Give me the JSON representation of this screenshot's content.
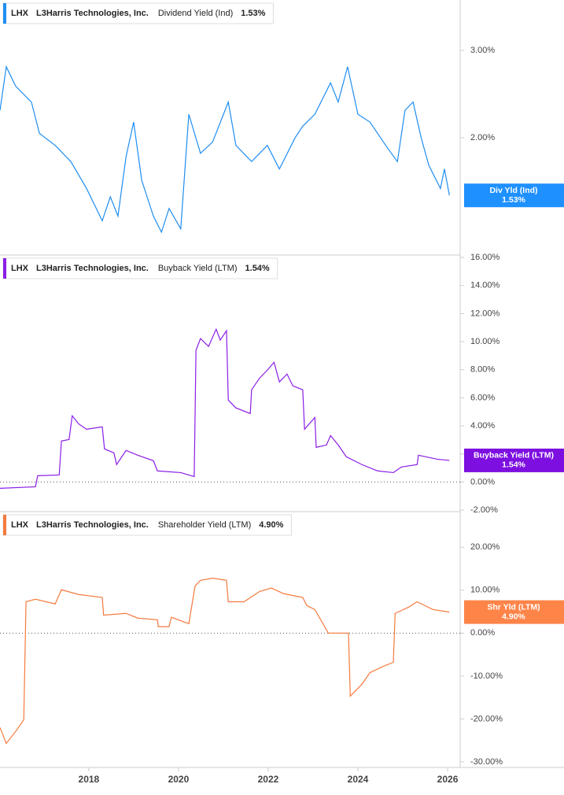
{
  "chart_data": [
    {
      "type": "line",
      "ticker": "LHX",
      "company": "L3Harris Technologies, Inc.",
      "log": true,
      "x": [
        2016.02,
        2016.16,
        2016.37,
        2016.72,
        2016.9,
        2017.25,
        2017.6,
        2017.95,
        2018.3,
        2018.48,
        2018.65,
        2018.83,
        2019.0,
        2019.18,
        2019.44,
        2019.62,
        2019.79,
        2020.05,
        2020.23,
        2020.49,
        2020.76,
        2021.11,
        2021.28,
        2021.63,
        2021.98,
        2022.25,
        2022.6,
        2022.77,
        2023.04,
        2023.39,
        2023.56,
        2023.77,
        2024.0,
        2024.27,
        2024.62,
        2024.88,
        2025.05,
        2025.23,
        2025.41,
        2025.58,
        2025.84,
        2025.93,
        2026.04
      ],
      "xlim": [
        2016.02,
        2026.28
      ],
      "ylim": [
        1.16,
        3.79
      ],
      "yticks": [
        {
          "value": 3,
          "label": "3.00%"
        },
        {
          "value": 2,
          "label": "2.00%"
        }
      ],
      "series": [
        {
          "name": "Dividend Yield (Ind)",
          "color": "#1f8ef1",
          "tag_color": "#1e90ff",
          "tag_label": "Div Yld (Ind)",
          "last_label": "1.53%",
          "values": [
            2.27,
            2.78,
            2.54,
            2.36,
            2.04,
            1.93,
            1.79,
            1.58,
            1.36,
            1.52,
            1.39,
            1.83,
            2.15,
            1.64,
            1.39,
            1.29,
            1.44,
            1.31,
            2.23,
            1.86,
            1.96,
            2.36,
            1.93,
            1.79,
            1.93,
            1.73,
            2.0,
            2.11,
            2.23,
            2.58,
            2.36,
            2.78,
            2.23,
            2.15,
            1.93,
            1.79,
            2.27,
            2.36,
            2.0,
            1.76,
            1.58,
            1.73,
            1.53
          ]
        }
      ]
    },
    {
      "type": "line",
      "ticker": "LHX",
      "company": "L3Harris Technologies, Inc.",
      "log": false,
      "zero_line": true,
      "x": [
        2016.02,
        2016.81,
        2016.86,
        2017.34,
        2017.39,
        2017.56,
        2017.63,
        2017.77,
        2017.95,
        2018.3,
        2018.35,
        2018.56,
        2018.62,
        2018.83,
        2019.09,
        2019.44,
        2019.53,
        2020.05,
        2020.35,
        2020.39,
        2020.49,
        2020.67,
        2020.84,
        2020.93,
        2021.07,
        2021.11,
        2021.28,
        2021.6,
        2021.63,
        2021.81,
        2021.98,
        2022.13,
        2022.25,
        2022.42,
        2022.55,
        2022.77,
        2022.81,
        2023.04,
        2023.07,
        2023.3,
        2023.39,
        2023.56,
        2023.74,
        2024.09,
        2024.44,
        2024.79,
        2024.97,
        2025.32,
        2025.35,
        2025.76,
        2026.04
      ],
      "xlim": [
        2016.02,
        2026.28
      ],
      "ylim": [
        -2.11,
        16.17
      ],
      "yticks": [
        {
          "value": 16,
          "label": "16.00%"
        },
        {
          "value": 14,
          "label": "14.00%"
        },
        {
          "value": 12,
          "label": "12.00%"
        },
        {
          "value": 10,
          "label": "10.00%"
        },
        {
          "value": 8,
          "label": "8.00%"
        },
        {
          "value": 6,
          "label": "6.00%"
        },
        {
          "value": 4,
          "label": "4.00%"
        },
        {
          "value": 2,
          "label": "2.00%"
        },
        {
          "value": 0,
          "label": "0.00%"
        },
        {
          "value": -2,
          "label": "-2.00%"
        }
      ],
      "series": [
        {
          "name": "Buyback Yield (LTM)",
          "color": "#8a1ee6",
          "tag_color": "#7d0fe0",
          "tag_label": "Buyback Yield (LTM)",
          "last_label": "1.54%",
          "values": [
            -0.45,
            -0.34,
            0.45,
            0.5,
            2.92,
            3.03,
            4.72,
            4.15,
            3.76,
            3.93,
            2.36,
            2.08,
            1.24,
            2.25,
            1.91,
            1.52,
            0.79,
            0.67,
            0.39,
            9.38,
            10.22,
            9.66,
            10.89,
            10.11,
            10.78,
            5.84,
            5.28,
            4.88,
            6.57,
            7.41,
            7.97,
            8.53,
            7.13,
            7.69,
            6.85,
            6.57,
            3.76,
            4.6,
            2.47,
            2.64,
            3.31,
            2.64,
            1.8,
            1.24,
            0.79,
            0.67,
            1.07,
            1.24,
            1.91,
            1.63,
            1.54
          ]
        }
      ]
    },
    {
      "type": "line",
      "ticker": "LHX",
      "company": "L3Harris Technologies, Inc.",
      "log": false,
      "zero_line": true,
      "x": [
        2016.02,
        2016.16,
        2016.37,
        2016.55,
        2016.6,
        2016.81,
        2017.25,
        2017.39,
        2017.77,
        2018.3,
        2018.33,
        2018.83,
        2019.09,
        2019.53,
        2019.55,
        2019.79,
        2019.84,
        2020.23,
        2020.37,
        2020.49,
        2020.76,
        2021.07,
        2021.11,
        2021.46,
        2021.81,
        2022.07,
        2022.34,
        2022.77,
        2022.86,
        2023.04,
        2023.34,
        2023.79,
        2023.83,
        2024.09,
        2024.27,
        2024.53,
        2024.79,
        2024.83,
        2025.14,
        2025.32,
        2025.67,
        2026.04
      ],
      "xlim": [
        2016.02,
        2026.28
      ],
      "xticks": [
        2018,
        2020,
        2022,
        2024,
        2026
      ],
      "ylim": [
        -31.3,
        28.3
      ],
      "yticks": [
        {
          "value": 20,
          "label": "20.00%"
        },
        {
          "value": 10,
          "label": "10.00%"
        },
        {
          "value": 0,
          "label": "0.00%"
        },
        {
          "value": -10,
          "label": "-10.00%"
        },
        {
          "value": -20,
          "label": "-20.00%"
        },
        {
          "value": -30,
          "label": "-30.00%"
        }
      ],
      "series": [
        {
          "name": "Shareholder Yield (LTM)",
          "color": "#f57a3d",
          "tag_color": "#ff8448",
          "tag_label": "Shr Yld (LTM)",
          "last_label": "4.90%",
          "values": [
            -22.0,
            -25.7,
            -22.9,
            -20.2,
            7.3,
            7.9,
            6.8,
            10.1,
            9.0,
            8.3,
            4.2,
            4.6,
            3.5,
            3.1,
            1.5,
            1.5,
            3.7,
            2.2,
            11.0,
            12.3,
            12.8,
            12.3,
            7.3,
            7.3,
            9.7,
            10.5,
            9.2,
            8.3,
            6.4,
            5.5,
            0,
            0,
            -14.7,
            -11.9,
            -9.2,
            -7.9,
            -6.8,
            4.6,
            6.1,
            7.3,
            5.5,
            4.9
          ]
        }
      ]
    }
  ]
}
